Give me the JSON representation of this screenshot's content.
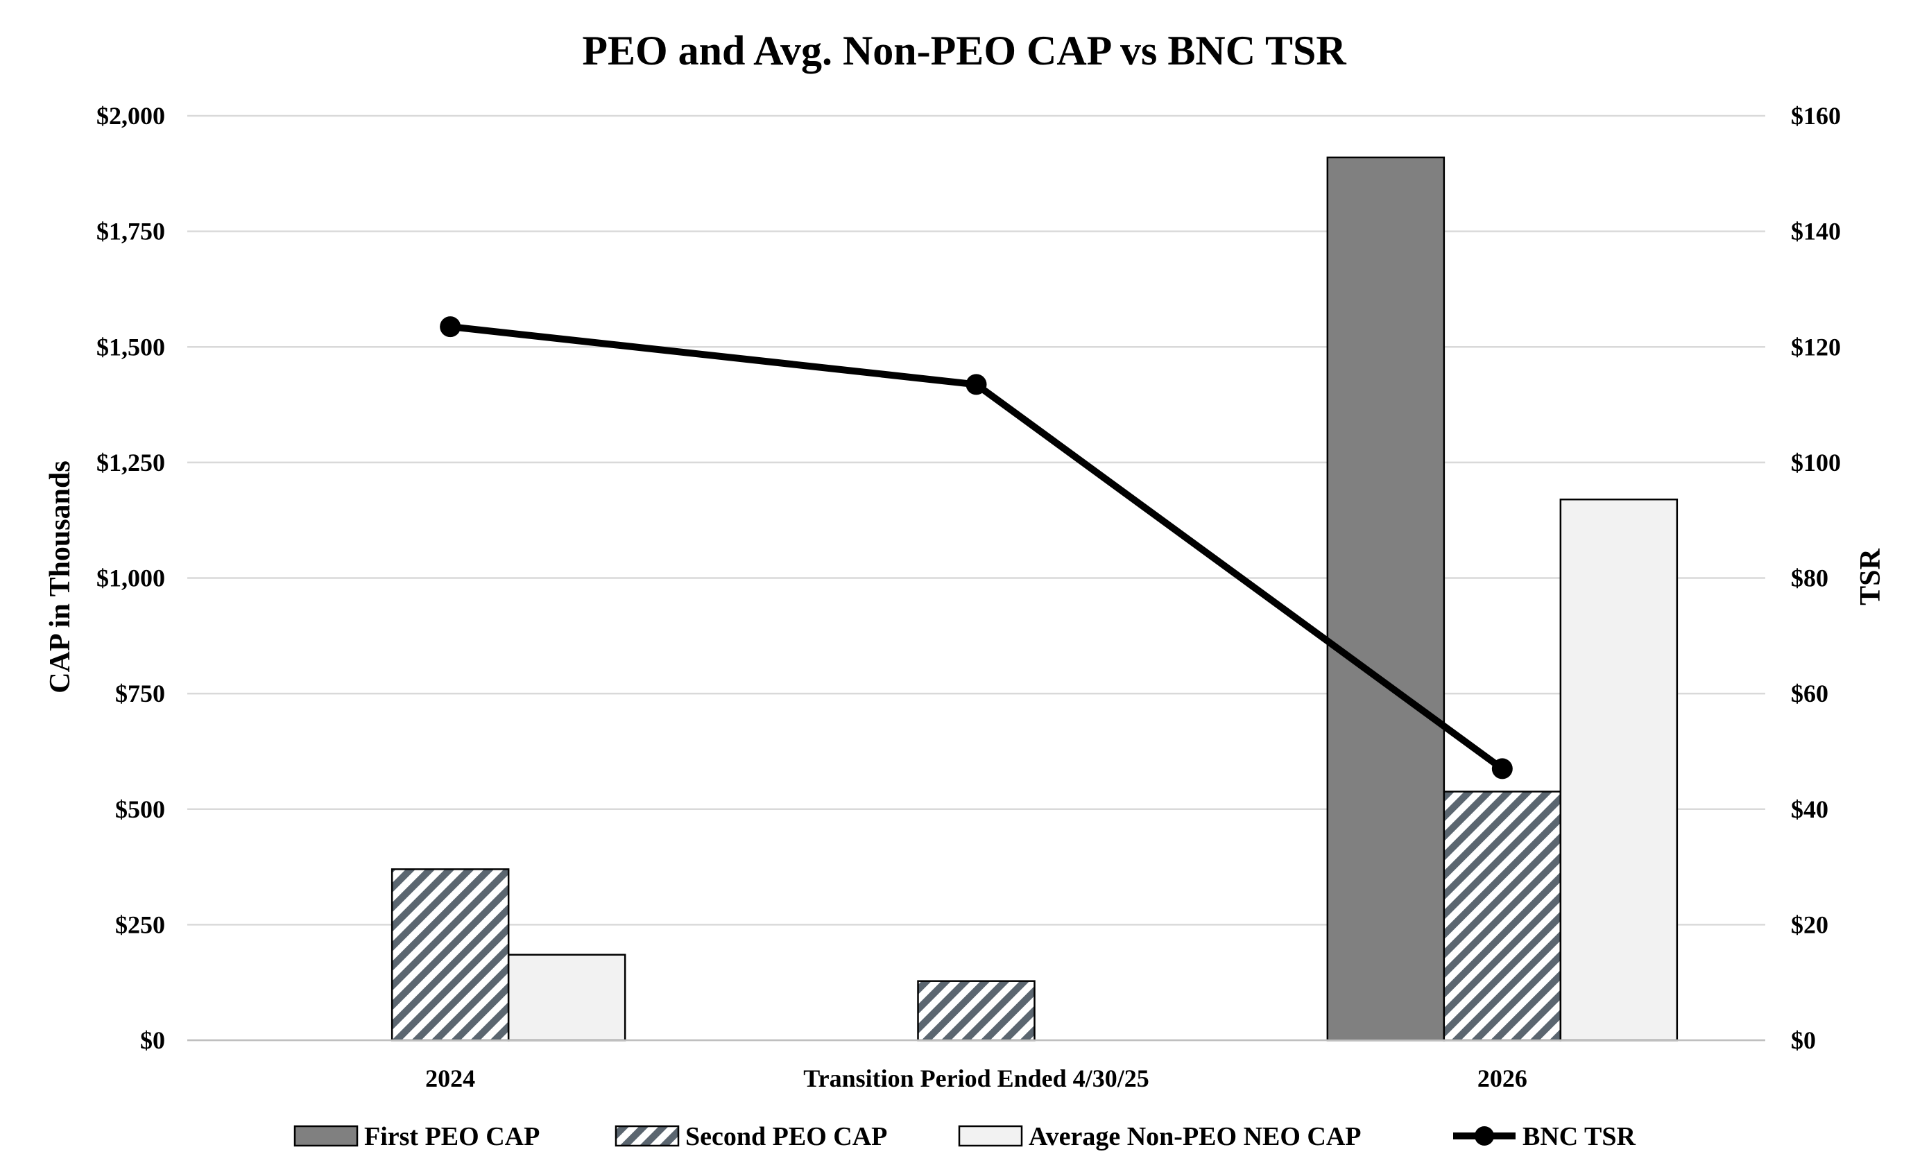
{
  "chart_data": {
    "type": "bar",
    "title": "PEO and Avg. Non-PEO CAP vs BNC TSR",
    "categories": [
      "2024",
      "Transition Period Ended 4/30/25",
      "2026"
    ],
    "y_left": {
      "label": "CAP in Thousands",
      "ylim": [
        0,
        2000
      ],
      "ticks": [
        0,
        250,
        500,
        750,
        1000,
        1250,
        1500,
        1750,
        2000
      ],
      "tick_labels": [
        "$0",
        "$250",
        "$500",
        "$750",
        "$1,000",
        "$1,250",
        "$1,500",
        "$1,750",
        "$2,000"
      ]
    },
    "y_right": {
      "label": "TSR",
      "ylim": [
        0,
        160
      ],
      "ticks": [
        0,
        20,
        40,
        60,
        80,
        100,
        120,
        140,
        160
      ],
      "tick_labels": [
        "$0",
        "$20",
        "$40",
        "$60",
        "$80",
        "$100",
        "$120",
        "$140",
        "$160"
      ]
    },
    "series": [
      {
        "name": "First PEO CAP",
        "kind": "bar",
        "axis": "left",
        "fill": "solid",
        "color": "#808080",
        "values": [
          null,
          null,
          1910
        ]
      },
      {
        "name": "Second PEO CAP",
        "kind": "bar",
        "axis": "left",
        "fill": "hatch",
        "color": "#5b6670",
        "values": [
          370,
          128,
          538
        ]
      },
      {
        "name": "Average Non-PEO NEO CAP",
        "kind": "bar",
        "axis": "left",
        "fill": "solid",
        "color": "#f2f2f2",
        "values": [
          185,
          null,
          1170
        ]
      },
      {
        "name": "BNC TSR",
        "kind": "line",
        "axis": "right",
        "color": "#000000",
        "values": [
          123.5,
          113.5,
          47
        ]
      }
    ],
    "grid": true,
    "legend": "bottom"
  }
}
